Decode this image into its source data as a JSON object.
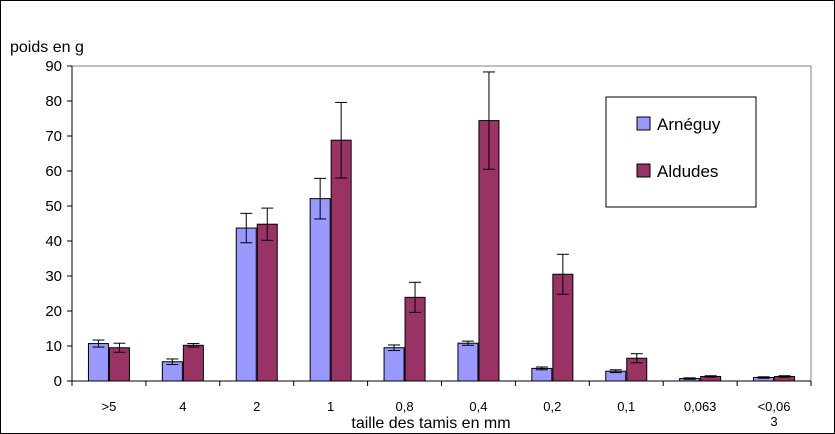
{
  "chart_data": {
    "type": "bar",
    "title": "",
    "ylabel": "poids en g",
    "xlabel": "taille des tamis en mm",
    "ylim": [
      0,
      90
    ],
    "yticks": [
      0,
      10,
      20,
      30,
      40,
      50,
      60,
      70,
      80,
      90
    ],
    "grid": false,
    "legend_position": "right",
    "categories": [
      ">5",
      "4",
      "2",
      "1",
      "0,8",
      "0,4",
      "0,2",
      "0,1",
      "0,063",
      "<0,063"
    ],
    "category_display": [
      [
        ">5"
      ],
      [
        "4"
      ],
      [
        "2"
      ],
      [
        "1"
      ],
      [
        "0,8"
      ],
      [
        "0,4"
      ],
      [
        "0,2"
      ],
      [
        "0,1"
      ],
      [
        "0,063"
      ],
      [
        "<0,06",
        "3"
      ]
    ],
    "series": [
      {
        "name": "Arnéguy",
        "color": "#9999ff",
        "values": [
          10.7,
          5.5,
          43.7,
          52.1,
          9.5,
          10.8,
          3.6,
          2.8,
          0.7,
          1.0
        ],
        "error": [
          1.0,
          0.8,
          4.2,
          5.8,
          0.8,
          0.6,
          0.4,
          0.4,
          0.2,
          0.2
        ]
      },
      {
        "name": "Aldudes",
        "color": "#993366",
        "values": [
          9.5,
          10.2,
          44.8,
          68.8,
          23.9,
          74.4,
          30.5,
          6.5,
          1.3,
          1.3
        ],
        "error": [
          1.3,
          0.5,
          4.6,
          10.8,
          4.3,
          13.9,
          5.7,
          1.3,
          0.2,
          0.2
        ]
      }
    ]
  }
}
